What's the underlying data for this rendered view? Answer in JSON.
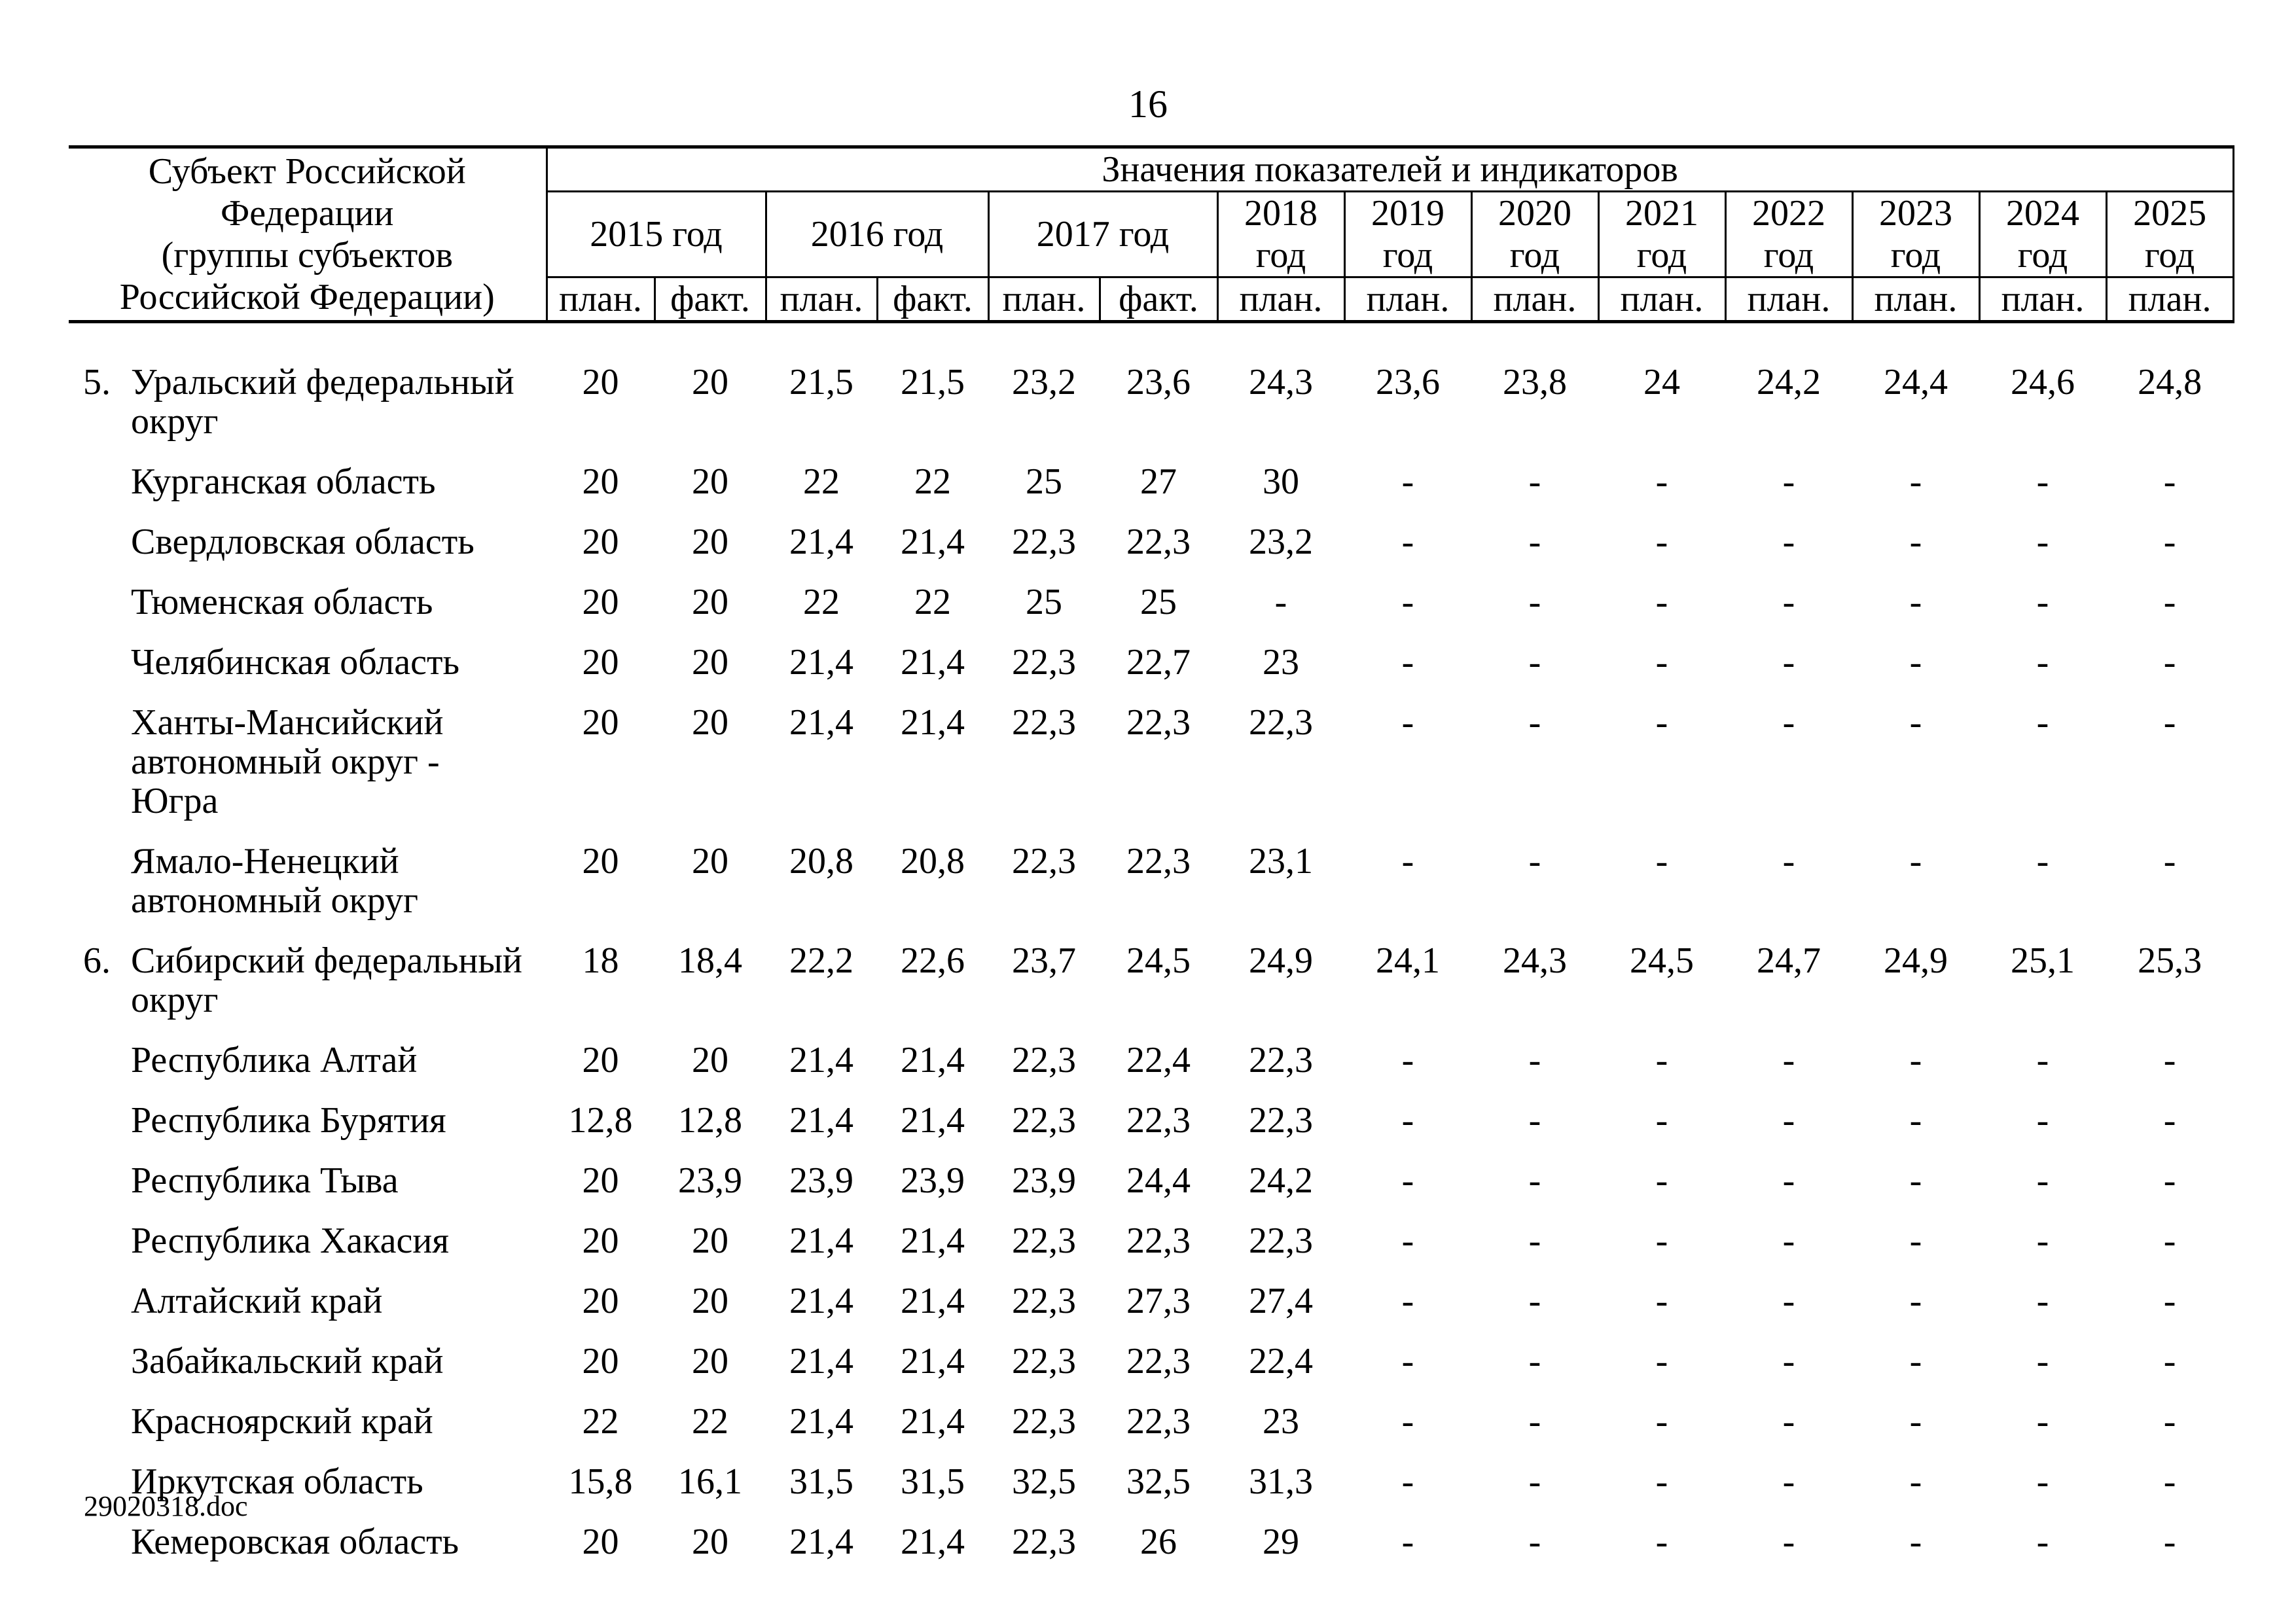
{
  "page": {
    "number": "16",
    "footer": "29020318.doc"
  },
  "table": {
    "title": "Значения показателей и индикаторов",
    "subject_header": "Субъект Российской Федерации\n(группы субъектов\nРоссийской Федерации)",
    "labels": {
      "plan": "план.",
      "fact": "факт."
    },
    "years_two_col": [
      "2015 год",
      "2016 год",
      "2017 год"
    ],
    "years_one_col": [
      "2018\nгод",
      "2019\nгод",
      "2020\nгод",
      "2021\nгод",
      "2022\nгод",
      "2023\nгод",
      "2024\nгод",
      "2025\nгод"
    ],
    "rows": [
      {
        "num": "5.",
        "name": "Уральский федеральный округ",
        "values": [
          "20",
          "20",
          "21,5",
          "21,5",
          "23,2",
          "23,6",
          "24,3",
          "23,6",
          "23,8",
          "24",
          "24,2",
          "24,4",
          "24,6",
          "24,8"
        ]
      },
      {
        "num": "",
        "name": "Курганская область",
        "values": [
          "20",
          "20",
          "22",
          "22",
          "25",
          "27",
          "30",
          "-",
          "-",
          "-",
          "-",
          "-",
          "-",
          "-"
        ]
      },
      {
        "num": "",
        "name": "Свердловская область",
        "values": [
          "20",
          "20",
          "21,4",
          "21,4",
          "22,3",
          "22,3",
          "23,2",
          "-",
          "-",
          "-",
          "-",
          "-",
          "-",
          "-"
        ]
      },
      {
        "num": "",
        "name": "Тюменская область",
        "values": [
          "20",
          "20",
          "22",
          "22",
          "25",
          "25",
          "-",
          "-",
          "-",
          "-",
          "-",
          "-",
          "-",
          "-"
        ]
      },
      {
        "num": "",
        "name": "Челябинская область",
        "values": [
          "20",
          "20",
          "21,4",
          "21,4",
          "22,3",
          "22,7",
          "23",
          "-",
          "-",
          "-",
          "-",
          "-",
          "-",
          "-"
        ]
      },
      {
        "num": "",
        "name": "Ханты-Мансийский автономный округ - Югра",
        "values": [
          "20",
          "20",
          "21,4",
          "21,4",
          "22,3",
          "22,3",
          "22,3",
          "-",
          "-",
          "-",
          "-",
          "-",
          "-",
          "-"
        ]
      },
      {
        "num": "",
        "name": "Ямало-Ненецкий автономный округ",
        "values": [
          "20",
          "20",
          "20,8",
          "20,8",
          "22,3",
          "22,3",
          "23,1",
          "-",
          "-",
          "-",
          "-",
          "-",
          "-",
          "-"
        ]
      },
      {
        "num": "6.",
        "name": "Сибирский федеральный округ",
        "values": [
          "18",
          "18,4",
          "22,2",
          "22,6",
          "23,7",
          "24,5",
          "24,9",
          "24,1",
          "24,3",
          "24,5",
          "24,7",
          "24,9",
          "25,1",
          "25,3"
        ]
      },
      {
        "num": "",
        "name": "Республика Алтай",
        "values": [
          "20",
          "20",
          "21,4",
          "21,4",
          "22,3",
          "22,4",
          "22,3",
          "-",
          "-",
          "-",
          "-",
          "-",
          "-",
          "-"
        ]
      },
      {
        "num": "",
        "name": "Республика Бурятия",
        "values": [
          "12,8",
          "12,8",
          "21,4",
          "21,4",
          "22,3",
          "22,3",
          "22,3",
          "-",
          "-",
          "-",
          "-",
          "-",
          "-",
          "-"
        ]
      },
      {
        "num": "",
        "name": "Республика Тыва",
        "values": [
          "20",
          "23,9",
          "23,9",
          "23,9",
          "23,9",
          "24,4",
          "24,2",
          "-",
          "-",
          "-",
          "-",
          "-",
          "-",
          "-"
        ]
      },
      {
        "num": "",
        "name": "Республика Хакасия",
        "values": [
          "20",
          "20",
          "21,4",
          "21,4",
          "22,3",
          "22,3",
          "22,3",
          "-",
          "-",
          "-",
          "-",
          "-",
          "-",
          "-"
        ]
      },
      {
        "num": "",
        "name": "Алтайский край",
        "values": [
          "20",
          "20",
          "21,4",
          "21,4",
          "22,3",
          "27,3",
          "27,4",
          "-",
          "-",
          "-",
          "-",
          "-",
          "-",
          "-"
        ]
      },
      {
        "num": "",
        "name": "Забайкальский край",
        "values": [
          "20",
          "20",
          "21,4",
          "21,4",
          "22,3",
          "22,3",
          "22,4",
          "-",
          "-",
          "-",
          "-",
          "-",
          "-",
          "-"
        ]
      },
      {
        "num": "",
        "name": "Красноярский край",
        "values": [
          "22",
          "22",
          "21,4",
          "21,4",
          "22,3",
          "22,3",
          "23",
          "-",
          "-",
          "-",
          "-",
          "-",
          "-",
          "-"
        ]
      },
      {
        "num": "",
        "name": "Иркутская область",
        "values": [
          "15,8",
          "16,1",
          "31,5",
          "31,5",
          "32,5",
          "32,5",
          "31,3",
          "-",
          "-",
          "-",
          "-",
          "-",
          "-",
          "-"
        ]
      },
      {
        "num": "",
        "name": "Кемеровская область",
        "values": [
          "20",
          "20",
          "21,4",
          "21,4",
          "22,3",
          "26",
          "29",
          "-",
          "-",
          "-",
          "-",
          "-",
          "-",
          "-"
        ]
      }
    ]
  }
}
